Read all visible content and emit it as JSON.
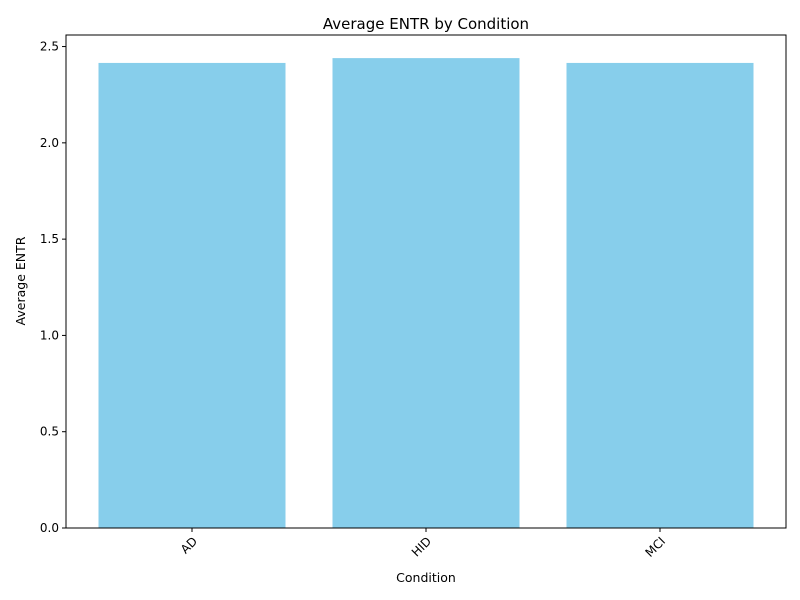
{
  "chart_data": {
    "type": "bar",
    "title": "Average ENTR by Condition",
    "xlabel": "Condition",
    "ylabel": "Average ENTR",
    "categories": [
      "AD",
      "HID",
      "MCI"
    ],
    "values": [
      2.415,
      2.44,
      2.415
    ],
    "ylim": [
      0,
      2.56
    ],
    "yticks": [
      "0.0",
      "0.5",
      "1.0",
      "1.5",
      "2.0",
      "2.5"
    ],
    "grid": false,
    "bar_color": "#87CEEB",
    "x_tick_rotation_deg": 45
  }
}
